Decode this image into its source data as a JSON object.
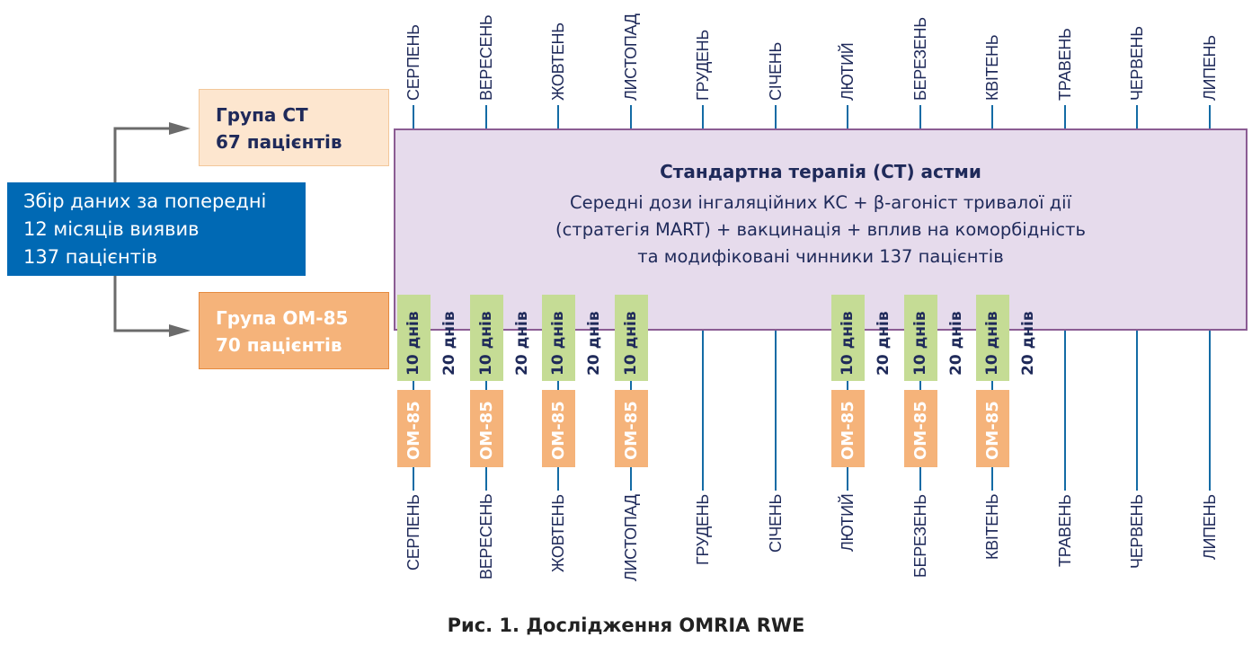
{
  "source_box": {
    "lines": [
      "Збір даних за попередні",
      "12 місяців виявив",
      "137 пацієнтів"
    ]
  },
  "group_ct": {
    "lines": [
      "Група СТ",
      "67 пацієнтів"
    ]
  },
  "group_om": {
    "lines": [
      "Група ОМ-85",
      "70 пацієнтів"
    ]
  },
  "therapy": {
    "title": "Стандартна терапія (СТ) астми",
    "lines": [
      "Середні дози інгаляційних КС + β-агоніст тривалої дії",
      "(стратегія MART) + вакцинація + вплив на коморбідність",
      "та модифіковані чинники 137 пацієнтів"
    ]
  },
  "months": [
    "СЕРПЕНЬ",
    "ВЕРЕСЕНЬ",
    "ЖОВТЕНЬ",
    "ЛИСТОПАД",
    "ГРУДЕНЬ",
    "СІЧЕНЬ",
    "ЛЮТИЙ",
    "БЕРЕЗЕНЬ",
    "КВІТЕНЬ",
    "ТРАВЕНЬ",
    "ЧЕРВЕНЬ",
    "ЛИПЕНЬ"
  ],
  "om85_months": [
    0,
    1,
    2,
    3,
    6,
    7,
    8
  ],
  "pause_after_months": [
    0,
    1,
    2,
    6,
    7,
    8
  ],
  "dose_label": "10 днів",
  "pause_label": "20 днів",
  "drug_label": "ОМ-85",
  "colors": {
    "blue": "#0069b4",
    "purple_bg": "#e6dbec",
    "green": "#c5dc95",
    "orange": "#f5b37a",
    "line": "#136ba5"
  },
  "caption": "Рис. 1. Дослідження OMRIA RWE"
}
